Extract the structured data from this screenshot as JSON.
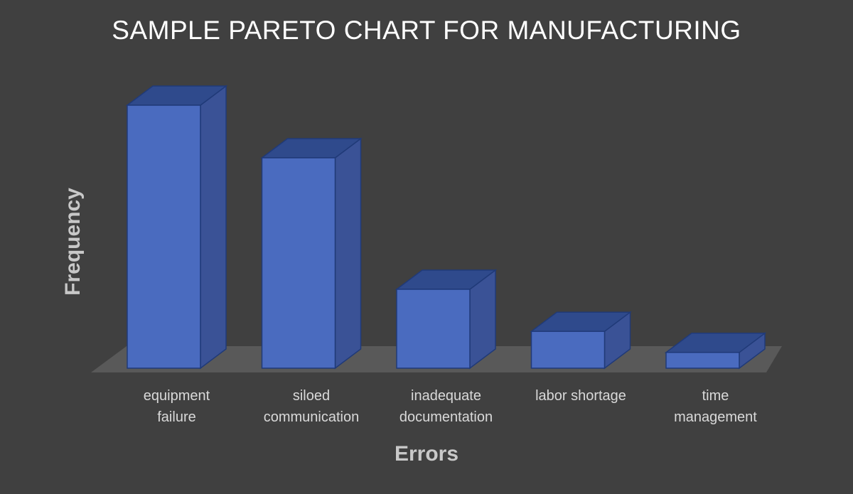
{
  "chart_data": {
    "type": "bar",
    "title": "SAMPLE PARETO CHART FOR MANUFACTURING",
    "xlabel": "Errors",
    "ylabel": "Frequency",
    "categories": [
      [
        "equipment",
        "failure"
      ],
      [
        "siloed",
        "communication"
      ],
      [
        "inadequate",
        "documentation"
      ],
      [
        "labor shortage"
      ],
      [
        "time",
        "management"
      ]
    ],
    "values": [
      100,
      80,
      30,
      14,
      6
    ],
    "ylim": [
      0,
      100
    ],
    "style": "3d-column",
    "grid": false,
    "legend": "none",
    "colors": {
      "background": "#404040",
      "floor": "#595959",
      "bar_front": "#4a6bbf",
      "bar_top": "#2f4a8c",
      "bar_side": "#3a5296",
      "bar_edge": "#203a78",
      "title": "#ffffff",
      "category_text": "#d9d9d9",
      "axis_text": "#c8c8c8"
    }
  }
}
